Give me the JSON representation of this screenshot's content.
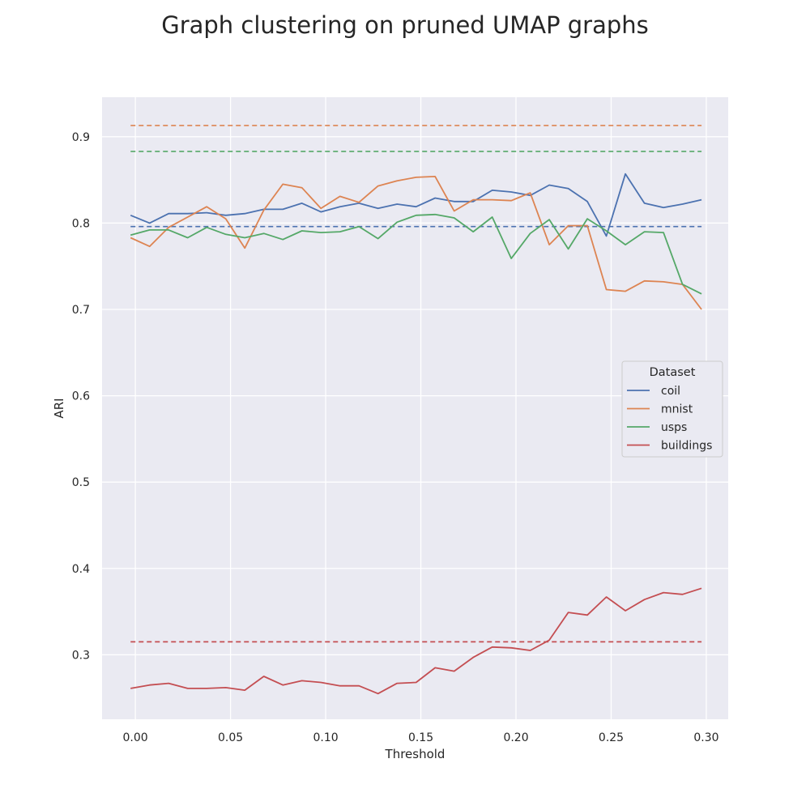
{
  "chart_data": {
    "type": "line",
    "title": "Graph clustering on pruned UMAP graphs",
    "xlabel": "Threshold",
    "ylabel": "ARI",
    "xlim": [
      -0.0175,
      0.3115
    ],
    "ylim": [
      0.2253,
      0.9458
    ],
    "xticks": [
      0.0,
      0.05,
      0.1,
      0.15,
      0.2,
      0.25,
      0.3
    ],
    "xtick_labels": [
      "0.00",
      "0.05",
      "0.10",
      "0.15",
      "0.20",
      "0.25",
      "0.30"
    ],
    "yticks": [
      0.3,
      0.4,
      0.5,
      0.6,
      0.7,
      0.8,
      0.9
    ],
    "ytick_labels": [
      "0.3",
      "0.4",
      "0.5",
      "0.6",
      "0.7",
      "0.8",
      "0.9"
    ],
    "grid": true,
    "legend": {
      "title": "Dataset",
      "position": "center-right"
    },
    "x": [
      -0.0025,
      0.0075,
      0.0175,
      0.0275,
      0.0375,
      0.0475,
      0.0575,
      0.0675,
      0.0775,
      0.0875,
      0.0975,
      0.1075,
      0.1175,
      0.1275,
      0.1375,
      0.1475,
      0.1575,
      0.1675,
      0.1775,
      0.1875,
      0.1975,
      0.2075,
      0.2175,
      0.2275,
      0.2375,
      0.2475,
      0.2575,
      0.2675,
      0.2775,
      0.2875,
      0.2975
    ],
    "series": [
      {
        "name": "coil",
        "color": "#4c72b0",
        "baseline": 0.796,
        "values": [
          0.809,
          0.8,
          0.811,
          0.811,
          0.812,
          0.809,
          0.811,
          0.816,
          0.816,
          0.823,
          0.813,
          0.819,
          0.823,
          0.817,
          0.822,
          0.819,
          0.829,
          0.825,
          0.825,
          0.838,
          0.836,
          0.832,
          0.844,
          0.84,
          0.825,
          0.785,
          0.857,
          0.823,
          0.818,
          0.822,
          0.827
        ]
      },
      {
        "name": "mnist",
        "color": "#dd8452",
        "baseline": 0.913,
        "values": [
          0.783,
          0.773,
          0.795,
          0.807,
          0.819,
          0.805,
          0.771,
          0.815,
          0.845,
          0.841,
          0.817,
          0.831,
          0.824,
          0.843,
          0.849,
          0.853,
          0.854,
          0.814,
          0.827,
          0.827,
          0.826,
          0.835,
          0.775,
          0.797,
          0.797,
          0.723,
          0.721,
          0.733,
          0.732,
          0.729,
          0.7
        ]
      },
      {
        "name": "usps",
        "color": "#55a868",
        "baseline": 0.883,
        "values": [
          0.786,
          0.792,
          0.792,
          0.783,
          0.795,
          0.787,
          0.783,
          0.788,
          0.781,
          0.791,
          0.789,
          0.79,
          0.796,
          0.782,
          0.801,
          0.809,
          0.81,
          0.806,
          0.79,
          0.807,
          0.759,
          0.788,
          0.804,
          0.77,
          0.805,
          0.791,
          0.775,
          0.79,
          0.789,
          0.729,
          0.718
        ]
      },
      {
        "name": "buildings",
        "color": "#c44e52",
        "baseline": 0.315,
        "values": [
          0.261,
          0.265,
          0.267,
          0.261,
          0.261,
          0.262,
          0.259,
          0.275,
          0.265,
          0.27,
          0.268,
          0.264,
          0.264,
          0.255,
          0.267,
          0.268,
          0.285,
          0.281,
          0.297,
          0.309,
          0.308,
          0.305,
          0.317,
          0.349,
          0.346,
          0.367,
          0.351,
          0.364,
          0.372,
          0.37,
          0.377
        ]
      }
    ]
  }
}
